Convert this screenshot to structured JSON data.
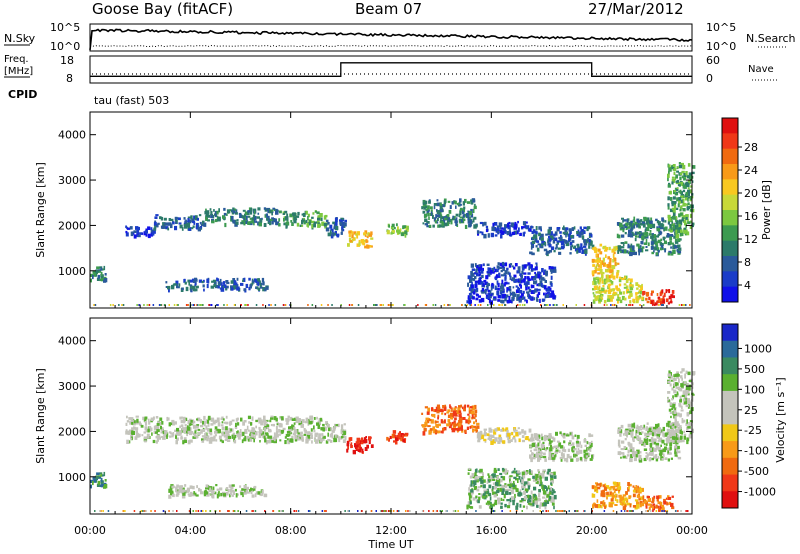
{
  "header": {
    "station": "Goose Bay (fitACF)",
    "beam": "Beam 07",
    "date": "27/Mar/2012"
  },
  "noise_panel": {
    "left_label": "N.Sky",
    "left_ticks": [
      "10^5",
      "10^0"
    ],
    "right_label": "N.Search",
    "right_ticks": [
      "10^5",
      "10^0"
    ]
  },
  "freq_panel": {
    "left_label_line1": "Freq.",
    "left_label_line2": "[MHz]",
    "left_ticks": [
      "18",
      "8"
    ],
    "right_label": "Nave",
    "right_ticks": [
      "60",
      "0"
    ],
    "freq_steps": [
      {
        "from_hour": 0,
        "to_hour": 10,
        "level": 0.25
      },
      {
        "from_hour": 10,
        "to_hour": 20,
        "level": 0.75
      },
      {
        "from_hour": 20,
        "to_hour": 24,
        "level": 0.25
      }
    ]
  },
  "cpid": {
    "label": "CPID",
    "program": "tau (fast) 503"
  },
  "chart_data": [
    {
      "type": "heatmap",
      "title": "",
      "ylabel": "Slant Range [km]",
      "xlabel": "",
      "ylim": [
        180,
        4500
      ],
      "yticks": [
        1000,
        2000,
        3000,
        4000
      ],
      "colorbar": {
        "label": "Power [dB]",
        "ticks": [
          "28",
          "24",
          "20",
          "16",
          "12",
          "8",
          "4"
        ],
        "colors": [
          "#e01010",
          "#f03818",
          "#f06a10",
          "#f89a18",
          "#f8c820",
          "#c8d838",
          "#7cc840",
          "#3c9a50",
          "#2c7a6a",
          "#2a5a9a",
          "#1a3cc8",
          "#1010e8"
        ]
      },
      "regions": [
        {
          "x0": 0.0,
          "x1": 0.6,
          "y0": 800,
          "y1": 1150,
          "c": 8
        },
        {
          "x0": 1.4,
          "x1": 2.5,
          "y0": 1800,
          "y1": 2000,
          "c": 10
        },
        {
          "x0": 2.5,
          "x1": 4.5,
          "y0": 1950,
          "y1": 2250,
          "c": 9
        },
        {
          "x0": 4.5,
          "x1": 7.5,
          "y0": 2050,
          "y1": 2400,
          "c": 8
        },
        {
          "x0": 7.5,
          "x1": 9.4,
          "y0": 2000,
          "y1": 2350,
          "c": 7
        },
        {
          "x0": 9.4,
          "x1": 10.2,
          "y0": 1800,
          "y1": 2200,
          "c": 9
        },
        {
          "x0": 10.2,
          "x1": 11.2,
          "y0": 1550,
          "y1": 1900,
          "c": 4
        },
        {
          "x0": 11.8,
          "x1": 12.6,
          "y0": 1800,
          "y1": 2050,
          "c": 6
        },
        {
          "x0": 13.2,
          "x1": 15.4,
          "y0": 2000,
          "y1": 2600,
          "c": 8
        },
        {
          "x0": 15.4,
          "x1": 17.5,
          "y0": 1800,
          "y1": 2100,
          "c": 10
        },
        {
          "x0": 3.0,
          "x1": 7.0,
          "y0": 600,
          "y1": 850,
          "c": 9
        },
        {
          "x0": 15.0,
          "x1": 18.5,
          "y0": 350,
          "y1": 1200,
          "c": 10
        },
        {
          "x0": 17.5,
          "x1": 20.0,
          "y0": 1400,
          "y1": 2000,
          "c": 9
        },
        {
          "x0": 20.0,
          "x1": 21.0,
          "y0": 900,
          "y1": 1600,
          "c": 4
        },
        {
          "x0": 20.0,
          "x1": 22.0,
          "y0": 350,
          "y1": 900,
          "c": 5
        },
        {
          "x0": 21.0,
          "x1": 23.5,
          "y0": 1400,
          "y1": 2200,
          "c": 8
        },
        {
          "x0": 22.0,
          "x1": 23.2,
          "y0": 300,
          "y1": 600,
          "c": 1
        },
        {
          "x0": 23.0,
          "x1": 24.0,
          "y0": 1800,
          "y1": 3400,
          "c": 7
        }
      ]
    },
    {
      "type": "heatmap",
      "title": "",
      "ylabel": "Slant Range [km]",
      "xlabel": "Time UT",
      "ylim": [
        180,
        4500
      ],
      "yticks": [
        1000,
        2000,
        3000,
        4000
      ],
      "xticks": [
        "00:00",
        "04:00",
        "08:00",
        "12:00",
        "16:00",
        "20:00",
        "00:00"
      ],
      "colorbar": {
        "label": "Velocity [m s⁻¹]",
        "ticks": [
          "1000",
          "500",
          "100",
          "25",
          "-25",
          "-100",
          "-500",
          "-1000"
        ],
        "colors": [
          "#1a28c8",
          "#2a6a9a",
          "#3a8a60",
          "#5ab030",
          "#c4c4bc",
          "#c4c4bc",
          "#f0c818",
          "#f89a18",
          "#f06a10",
          "#f03818",
          "#e01010"
        ]
      },
      "regions": [
        {
          "x0": 0.0,
          "x1": 0.6,
          "y0": 800,
          "y1": 1150,
          "c": 2
        },
        {
          "x0": 1.4,
          "x1": 9.4,
          "y0": 1800,
          "y1": 2350,
          "c": 4
        },
        {
          "x0": 9.4,
          "x1": 10.2,
          "y0": 1800,
          "y1": 2200,
          "c": 4
        },
        {
          "x0": 10.2,
          "x1": 11.2,
          "y0": 1550,
          "y1": 1900,
          "c": 10
        },
        {
          "x0": 11.8,
          "x1": 12.6,
          "y0": 1800,
          "y1": 2050,
          "c": 9
        },
        {
          "x0": 13.2,
          "x1": 15.4,
          "y0": 2000,
          "y1": 2600,
          "c": 8
        },
        {
          "x0": 15.4,
          "x1": 17.5,
          "y0": 1800,
          "y1": 2100,
          "c": 5
        },
        {
          "x0": 3.0,
          "x1": 7.0,
          "y0": 600,
          "y1": 850,
          "c": 4
        },
        {
          "x0": 15.0,
          "x1": 18.5,
          "y0": 350,
          "y1": 1200,
          "c": 3
        },
        {
          "x0": 17.5,
          "x1": 20.0,
          "y0": 1400,
          "y1": 2000,
          "c": 4
        },
        {
          "x0": 20.0,
          "x1": 22.0,
          "y0": 350,
          "y1": 900,
          "c": 7
        },
        {
          "x0": 21.0,
          "x1": 23.5,
          "y0": 1400,
          "y1": 2200,
          "c": 4
        },
        {
          "x0": 22.0,
          "x1": 23.2,
          "y0": 300,
          "y1": 600,
          "c": 8
        },
        {
          "x0": 23.0,
          "x1": 24.0,
          "y0": 1800,
          "y1": 3400,
          "c": 4
        }
      ]
    }
  ]
}
